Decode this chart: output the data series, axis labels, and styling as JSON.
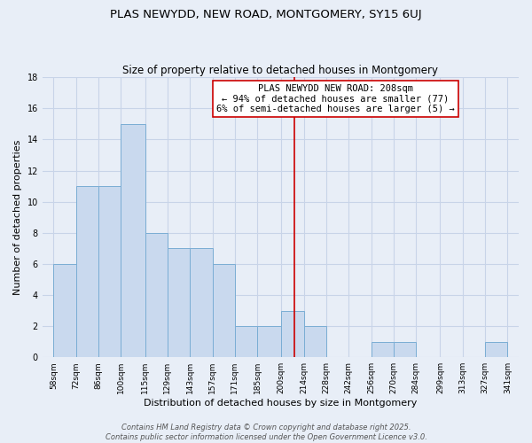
{
  "title": "PLAS NEWYDD, NEW ROAD, MONTGOMERY, SY15 6UJ",
  "subtitle": "Size of property relative to detached houses in Montgomery",
  "xlabel": "Distribution of detached houses by size in Montgomery",
  "ylabel": "Number of detached properties",
  "bar_left_edges": [
    58,
    72,
    86,
    100,
    115,
    129,
    143,
    157,
    171,
    185,
    200,
    214,
    228,
    242,
    256,
    270,
    284,
    299,
    313,
    327
  ],
  "bar_widths": [
    14,
    14,
    14,
    15,
    14,
    14,
    14,
    14,
    14,
    15,
    14,
    14,
    14,
    14,
    14,
    14,
    15,
    14,
    14,
    14
  ],
  "bar_heights": [
    6,
    11,
    11,
    15,
    8,
    7,
    7,
    6,
    2,
    2,
    3,
    2,
    0,
    0,
    1,
    1,
    0,
    0,
    0,
    1
  ],
  "bar_color": "#c9d9ee",
  "bar_edgecolor": "#7aadd4",
  "tick_labels": [
    "58sqm",
    "72sqm",
    "86sqm",
    "100sqm",
    "115sqm",
    "129sqm",
    "143sqm",
    "157sqm",
    "171sqm",
    "185sqm",
    "200sqm",
    "214sqm",
    "228sqm",
    "242sqm",
    "256sqm",
    "270sqm",
    "284sqm",
    "299sqm",
    "313sqm",
    "327sqm",
    "341sqm"
  ],
  "tick_positions": [
    58,
    72,
    86,
    100,
    115,
    129,
    143,
    157,
    171,
    185,
    200,
    214,
    228,
    242,
    256,
    270,
    284,
    299,
    313,
    327,
    341
  ],
  "ylim": [
    0,
    18
  ],
  "xlim": [
    51,
    348
  ],
  "yticks": [
    0,
    2,
    4,
    6,
    8,
    10,
    12,
    14,
    16,
    18
  ],
  "vline_x": 208,
  "vline_color": "#cc0000",
  "annotation_title": "PLAS NEWYDD NEW ROAD: 208sqm",
  "annotation_line2": "← 94% of detached houses are smaller (77)",
  "annotation_line3": "6% of semi-detached houses are larger (5) →",
  "footer1": "Contains HM Land Registry data © Crown copyright and database right 2025.",
  "footer2": "Contains public sector information licensed under the Open Government Licence v3.0.",
  "background_color": "#e8eef7",
  "grid_color": "#c8d4e8",
  "title_fontsize": 9.5,
  "subtitle_fontsize": 8.5,
  "ylabel_fontsize": 8,
  "xlabel_fontsize": 8,
  "tick_fontsize": 6.5,
  "annotation_fontsize": 7.5,
  "footer_fontsize": 6
}
